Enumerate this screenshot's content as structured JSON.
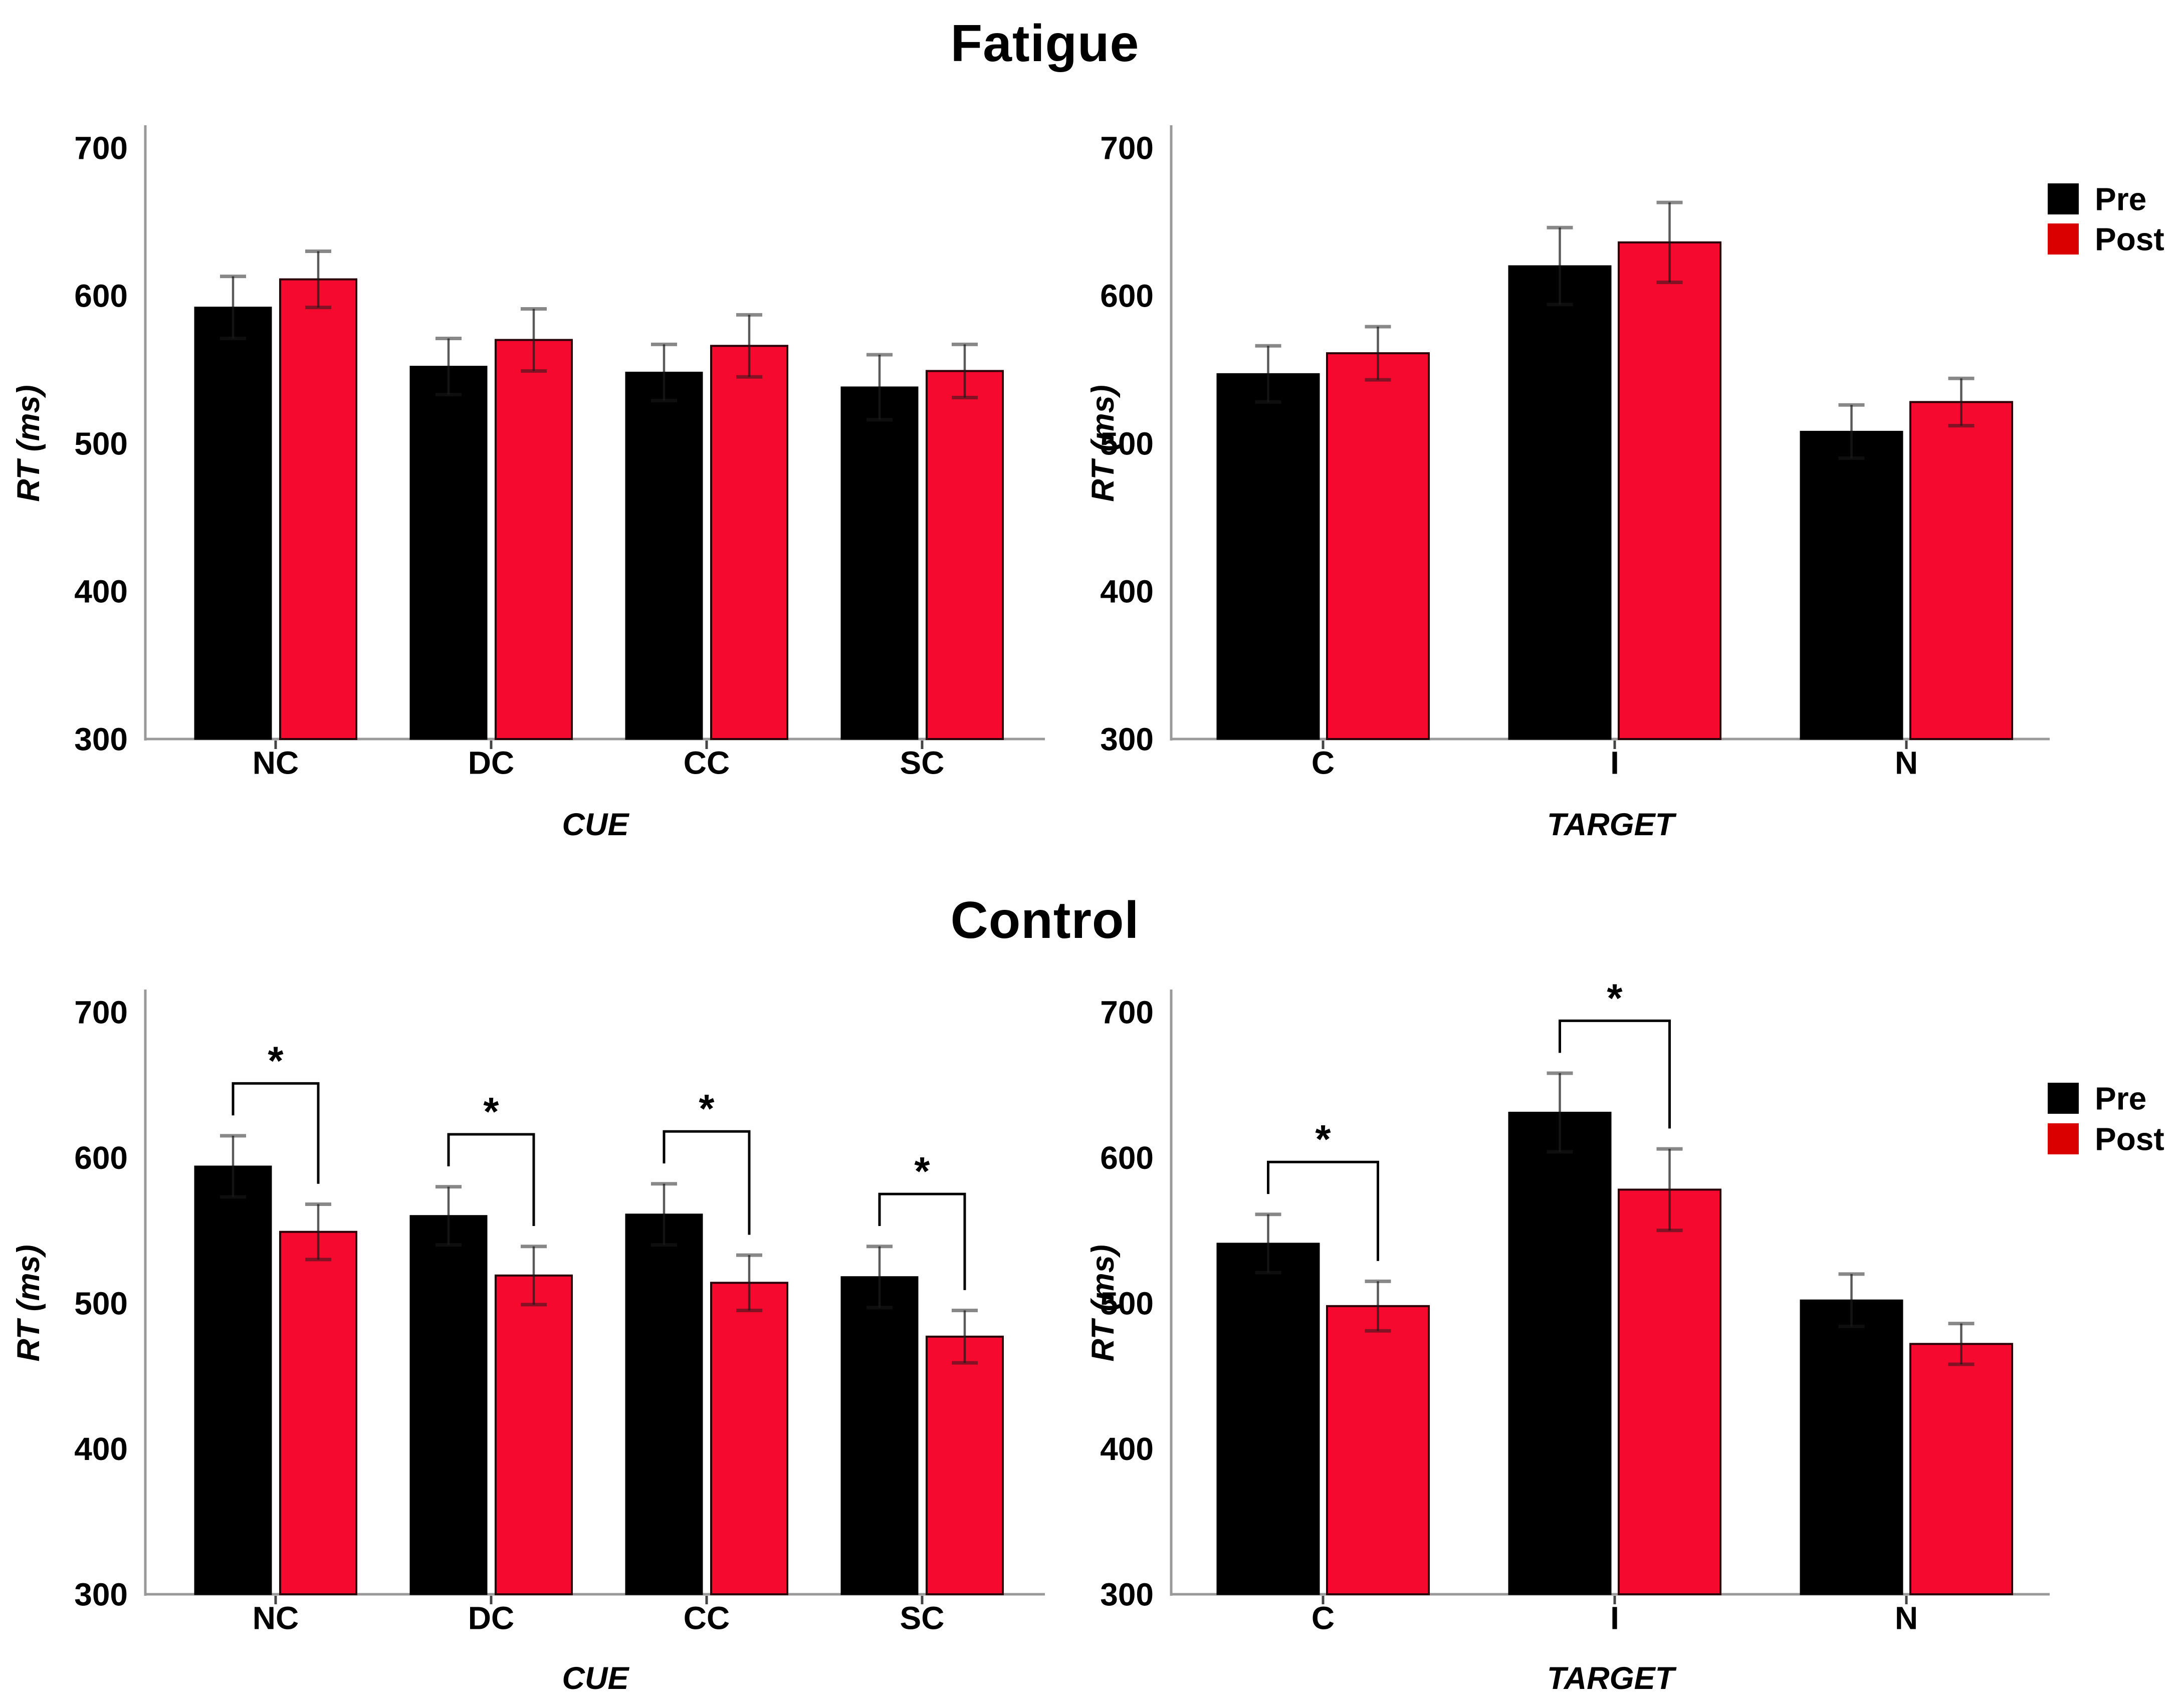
{
  "figure": {
    "section_titles": {
      "top": "Fatigue",
      "bottom": "Control"
    }
  },
  "legend": {
    "items": [
      {
        "label": "Pre",
        "color": "#000000"
      },
      {
        "label": "Post",
        "color": "#DB0000"
      }
    ]
  },
  "colors": {
    "pre_bar": "#000000",
    "post_bar": "#F5092F",
    "post_bar_outline": "#2A0008",
    "axis": "#999999",
    "error_bar": "#1A1A1A",
    "significance": "#000000",
    "text": "#000000"
  },
  "chart_data": [
    {
      "id": "fatigue-cue",
      "section": "Fatigue",
      "type": "bar",
      "title": "Fatigue",
      "xlabel": "CUE",
      "ylabel": "RT  (ms)",
      "ylim": [
        300,
        700
      ],
      "yticks": [
        300,
        400,
        500,
        600,
        700
      ],
      "grid": false,
      "legend_position": "right-of-target-chart",
      "categories": [
        "NC",
        "DC",
        "CC",
        "SC"
      ],
      "series": [
        {
          "name": "Pre",
          "values": [
            592,
            552,
            548,
            538
          ],
          "errors": [
            21,
            19,
            19,
            22
          ]
        },
        {
          "name": "Post",
          "values": [
            611,
            570,
            566,
            549
          ],
          "errors": [
            19,
            21,
            21,
            18
          ]
        }
      ],
      "significant_pairs": [],
      "significance_marker": "*"
    },
    {
      "id": "fatigue-target",
      "section": "Fatigue",
      "type": "bar",
      "title": "Fatigue",
      "xlabel": "TARGET",
      "ylabel": "RT  (ms)",
      "ylim": [
        300,
        700
      ],
      "yticks": [
        300,
        400,
        500,
        600,
        700
      ],
      "grid": false,
      "categories": [
        "C",
        "I",
        "N"
      ],
      "series": [
        {
          "name": "Pre",
          "values": [
            547,
            620,
            508
          ],
          "errors": [
            19,
            26,
            18
          ]
        },
        {
          "name": "Post",
          "values": [
            561,
            636,
            528
          ],
          "errors": [
            18,
            27,
            16
          ]
        }
      ],
      "significant_pairs": [],
      "significance_marker": "*"
    },
    {
      "id": "control-cue",
      "section": "Control",
      "type": "bar",
      "title": "Control",
      "xlabel": "CUE",
      "ylabel": "RT  (ms)",
      "ylim": [
        300,
        700
      ],
      "yticks": [
        300,
        400,
        500,
        600,
        700
      ],
      "grid": false,
      "categories": [
        "NC",
        "DC",
        "CC",
        "SC"
      ],
      "series": [
        {
          "name": "Pre",
          "values": [
            594,
            560,
            561,
            518
          ],
          "errors": [
            21,
            20,
            21,
            21
          ]
        },
        {
          "name": "Post",
          "values": [
            549,
            519,
            514,
            477
          ],
          "errors": [
            19,
            20,
            19,
            18
          ]
        }
      ],
      "significant_pairs": [
        0,
        1,
        2,
        3
      ],
      "significance_marker": "*"
    },
    {
      "id": "control-target",
      "section": "Control",
      "type": "bar",
      "title": "Control",
      "xlabel": "TARGET",
      "ylabel": "RT  (ms)",
      "ylim": [
        300,
        700
      ],
      "yticks": [
        300,
        400,
        500,
        600,
        700
      ],
      "grid": false,
      "categories": [
        "C",
        "I",
        "N"
      ],
      "series": [
        {
          "name": "Pre",
          "values": [
            541,
            631,
            502
          ],
          "errors": [
            20,
            27,
            18
          ]
        },
        {
          "name": "Post",
          "values": [
            498,
            578,
            472
          ],
          "errors": [
            17,
            28,
            14
          ]
        }
      ],
      "significant_pairs": [
        0,
        1
      ],
      "significance_marker": "*"
    }
  ]
}
